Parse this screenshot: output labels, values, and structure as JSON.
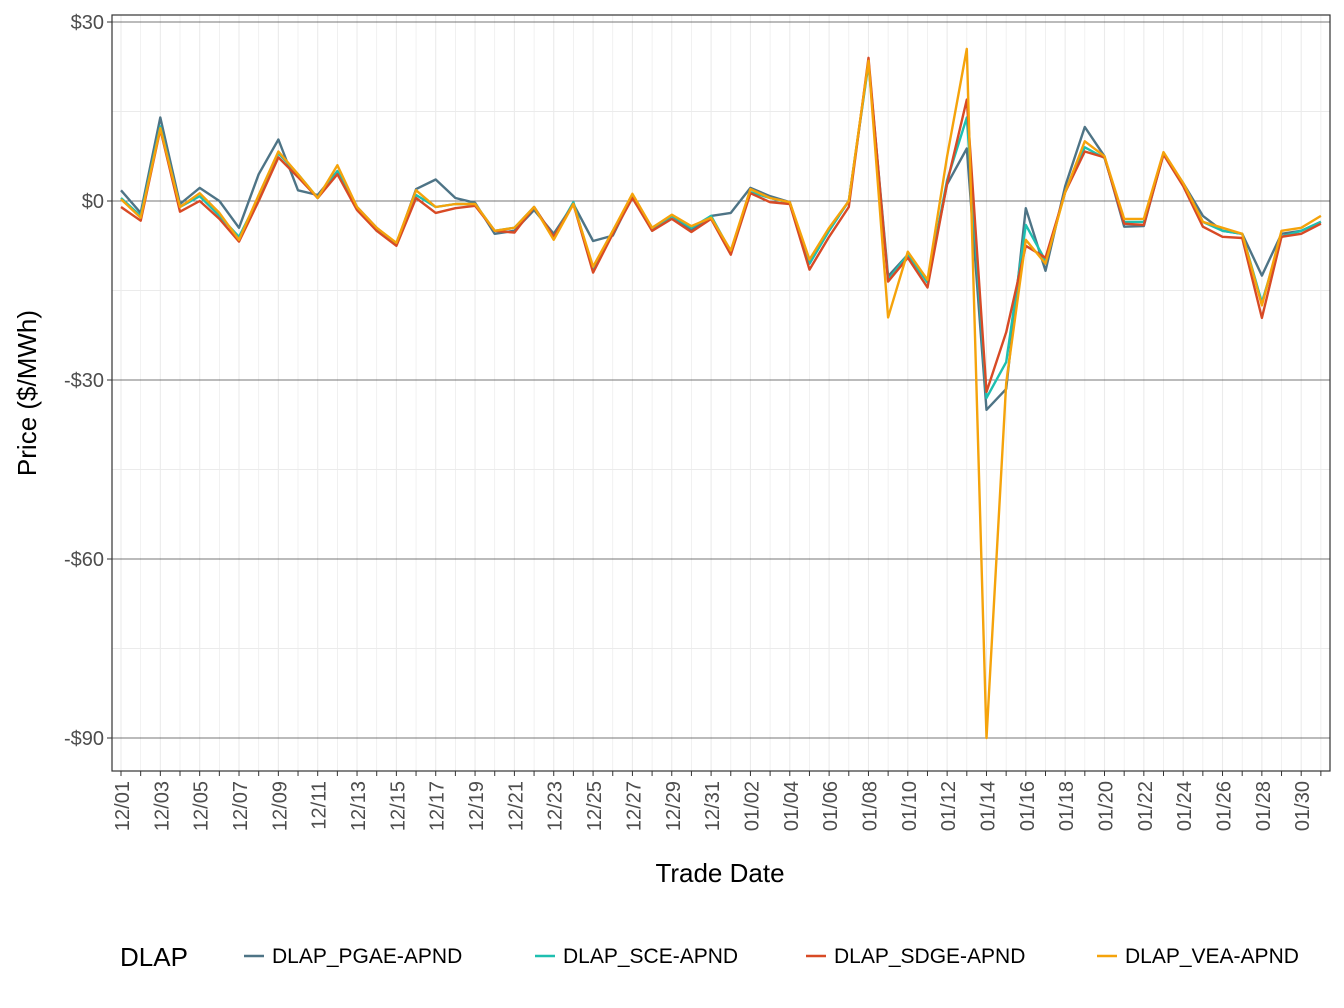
{
  "chart_data": {
    "type": "line",
    "xlabel": "Trade Date",
    "ylabel": "Price ($/MWh)",
    "ylim": [
      -95,
      31
    ],
    "yticks": [
      30,
      0,
      -30,
      -60,
      -90
    ],
    "ytick_labels": [
      "$30",
      "$0",
      "-$30",
      "-$60",
      "-$90"
    ],
    "grid": true,
    "legend_title": "DLAP",
    "legend_position": "bottom",
    "x": [
      "12/01",
      "12/02",
      "12/03",
      "12/04",
      "12/05",
      "12/06",
      "12/07",
      "12/08",
      "12/09",
      "12/10",
      "12/11",
      "12/12",
      "12/13",
      "12/14",
      "12/15",
      "12/16",
      "12/17",
      "12/18",
      "12/19",
      "12/20",
      "12/21",
      "12/22",
      "12/23",
      "12/24",
      "12/25",
      "12/26",
      "12/27",
      "12/28",
      "12/29",
      "12/30",
      "12/31",
      "01/01",
      "01/02",
      "01/03",
      "01/04",
      "01/05",
      "01/06",
      "01/07",
      "01/08",
      "01/09",
      "01/10",
      "01/11",
      "01/12",
      "01/13",
      "01/14",
      "01/15",
      "01/16",
      "01/17",
      "01/18",
      "01/19",
      "01/20",
      "01/21",
      "01/22",
      "01/23",
      "01/24",
      "01/25",
      "01/26",
      "01/27",
      "01/28",
      "01/29",
      "01/30",
      "01/31"
    ],
    "x_tick_labels": [
      "12/01",
      "12/03",
      "12/05",
      "12/07",
      "12/09",
      "12/11",
      "12/13",
      "12/15",
      "12/17",
      "12/19",
      "12/21",
      "12/23",
      "12/25",
      "12/27",
      "12/29",
      "12/31",
      "01/02",
      "01/04",
      "01/06",
      "01/08",
      "01/10",
      "01/12",
      "01/14",
      "01/16",
      "01/18",
      "01/20",
      "01/22",
      "01/24",
      "01/26",
      "01/28",
      "01/30"
    ],
    "series": [
      {
        "name": "DLAP_PGAE-APND",
        "color": "#4e7486",
        "values": [
          1.8,
          -2.0,
          14.0,
          -0.5,
          2.2,
          0.0,
          -4.5,
          4.5,
          10.3,
          1.8,
          1.0,
          5.0,
          -1.0,
          -4.5,
          -7.2,
          2.0,
          3.6,
          0.5,
          -0.3,
          -5.5,
          -5.0,
          -1.5,
          -5.5,
          -0.5,
          -6.7,
          -5.8,
          0.8,
          -4.5,
          -2.5,
          -4.8,
          -2.5,
          -2.0,
          2.2,
          0.8,
          -0.2,
          -10.5,
          -4.8,
          0.0,
          23.3,
          -12.6,
          -9.0,
          -13.5,
          2.8,
          8.8,
          -35.0,
          -31.5,
          -1.2,
          -11.7,
          2.5,
          12.4,
          7.5,
          -4.3,
          -4.2,
          8.0,
          3.0,
          -2.5,
          -5.0,
          -5.5,
          -12.5,
          -5.5,
          -5.0,
          -3.5
        ]
      },
      {
        "name": "DLAP_SCE-APND",
        "color": "#1ebfb0",
        "values": [
          0.5,
          -2.5,
          12.5,
          -1.0,
          0.8,
          -2.5,
          -6.0,
          0.5,
          8.0,
          4.5,
          0.5,
          5.0,
          -1.0,
          -5.0,
          -7.0,
          1.0,
          -1.0,
          -0.5,
          -0.5,
          -5.0,
          -4.5,
          -1.0,
          -6.0,
          -0.2,
          -11.5,
          -5.0,
          0.8,
          -5.0,
          -2.5,
          -4.5,
          -2.5,
          -8.5,
          1.5,
          0.5,
          -0.3,
          -10.5,
          -5.0,
          0.0,
          23.0,
          -13.2,
          -9.0,
          -13.7,
          3.5,
          14.0,
          -33.0,
          -27.0,
          -4.0,
          -10.0,
          1.5,
          9.0,
          7.2,
          -3.5,
          -3.5,
          8.0,
          2.8,
          -3.5,
          -5.0,
          -5.5,
          -17.0,
          -6.0,
          -5.0,
          -3.5
        ]
      },
      {
        "name": "DLAP_SDGE-APND",
        "color": "#d84a25",
        "values": [
          -1.0,
          -3.3,
          12.0,
          -1.8,
          0.0,
          -3.0,
          -6.8,
          0.0,
          7.3,
          4.0,
          0.5,
          4.5,
          -1.5,
          -5.0,
          -7.5,
          0.5,
          -2.0,
          -1.2,
          -0.8,
          -5.0,
          -5.3,
          -1.0,
          -6.0,
          -0.5,
          -12.0,
          -5.5,
          0.5,
          -5.0,
          -3.0,
          -5.2,
          -3.0,
          -9.0,
          1.3,
          -0.2,
          -0.5,
          -11.5,
          -6.0,
          -1.0,
          24.0,
          -13.5,
          -9.5,
          -14.5,
          3.0,
          17.0,
          -32.0,
          -22.0,
          -7.5,
          -9.5,
          1.5,
          8.3,
          7.3,
          -3.8,
          -4.0,
          7.8,
          2.5,
          -4.3,
          -6.0,
          -6.2,
          -19.6,
          -6.0,
          -5.5,
          -3.8
        ]
      },
      {
        "name": "DLAP_VEA-APND",
        "color": "#f5a30b",
        "values": [
          0.3,
          -2.8,
          12.2,
          -1.0,
          1.3,
          -2.0,
          -6.5,
          1.0,
          8.3,
          4.5,
          0.5,
          6.0,
          -1.0,
          -4.5,
          -7.0,
          1.8,
          -1.0,
          -0.5,
          -0.5,
          -5.0,
          -4.5,
          -1.0,
          -6.5,
          -0.5,
          -11.0,
          -5.0,
          1.2,
          -4.5,
          -2.3,
          -4.2,
          -2.8,
          -8.3,
          2.0,
          0.5,
          -0.2,
          -9.8,
          -4.5,
          0.0,
          23.5,
          -19.5,
          -8.5,
          -13.2,
          7.5,
          25.5,
          -90.0,
          -30.5,
          -6.5,
          -10.5,
          1.5,
          10.0,
          7.5,
          -3.0,
          -3.0,
          8.2,
          3.0,
          -3.5,
          -4.5,
          -5.5,
          -17.5,
          -5.0,
          -4.5,
          -2.5
        ]
      }
    ]
  }
}
